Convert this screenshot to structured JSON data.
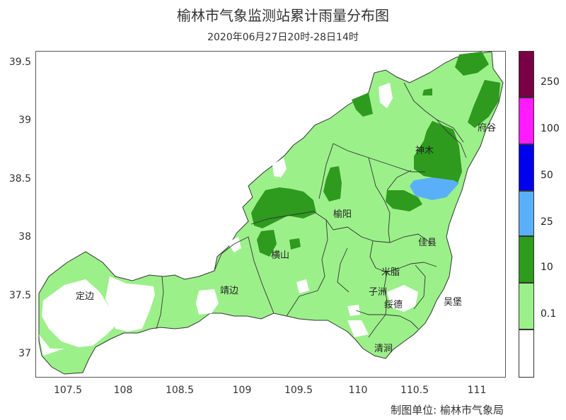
{
  "title": "榆林市气象监测站累计雨量分布图",
  "subtitle": "2020年06月27日20时-28日14时",
  "credit": "制图单位: 榆林市气象局",
  "y_axis_ticks": [
    "39.5",
    "39",
    "38.5",
    "38",
    "37.5",
    "37"
  ],
  "x_axis_ticks": [
    "107.5",
    "108",
    "108.5",
    "109",
    "109.5",
    "110",
    "110.5",
    "111"
  ],
  "cities": [
    "府谷",
    "神木",
    "榆阳",
    "佳县",
    "横山",
    "米脂",
    "靖边",
    "子洲",
    "定边",
    "绥德",
    "吴堡",
    "清涧"
  ],
  "legend": {
    "labels": [
      "250",
      "100",
      "50",
      "25",
      "10",
      "0.1"
    ],
    "colors": [
      "#7a0046",
      "#ff1aff",
      "#0000ee",
      "#5ab0f8",
      "#2e9a1e",
      "#9cf08a",
      "#ffffff"
    ]
  },
  "colors": {
    "light_green": "#9cf08a",
    "dark_green": "#2e9a1e",
    "light_blue": "#5ab0f8",
    "no_rain": "#ffffff",
    "border": "#333333"
  }
}
